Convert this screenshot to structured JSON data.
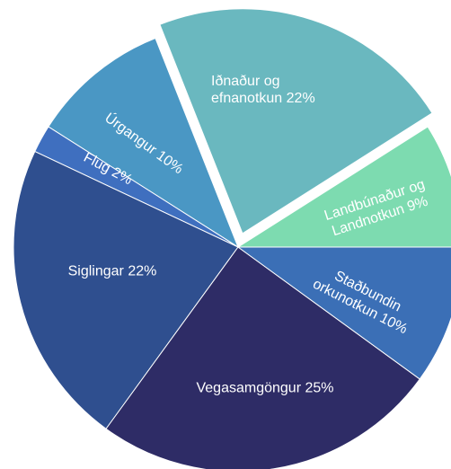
{
  "chart_data": {
    "type": "pie",
    "categories": [
      "Landbúnaður og Landnotkun",
      "Iðnaður og efnanotkun",
      "Úrgangur",
      "Flug",
      "Siglingar",
      "Vegasamgöngur",
      "Staðbundin orkunotkun"
    ],
    "values": [
      9,
      22,
      10,
      2,
      22,
      25,
      10
    ],
    "value_labels": [
      "9%",
      "22%",
      "10%",
      "2%",
      "22%",
      "25%",
      "10%"
    ],
    "colors": [
      "#7ddbb0",
      "#6ab8bf",
      "#4a97c4",
      "#3f6fbf",
      "#2f4f8f",
      "#2e2c66",
      "#3b6fb6"
    ],
    "exploded": [
      "Iðnaður og efnanotkun"
    ]
  }
}
